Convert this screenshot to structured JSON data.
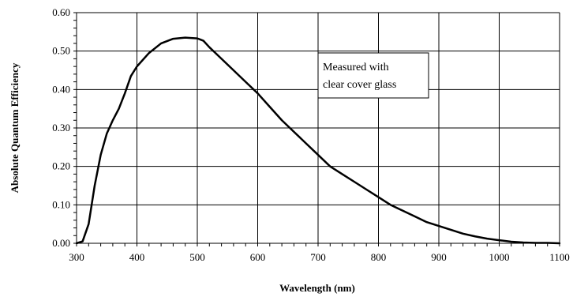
{
  "chart_data": {
    "type": "line",
    "title": "",
    "xlabel": "Wavelength (nm)",
    "ylabel": "Absolute Quantum Efficiency",
    "xlim": [
      300,
      1100
    ],
    "ylim": [
      0,
      0.6
    ],
    "x_ticks": [
      "300",
      "400",
      "500",
      "600",
      "700",
      "800",
      "900",
      "1000",
      "1100"
    ],
    "y_ticks": [
      "0.00",
      "0.10",
      "0.20",
      "0.30",
      "0.40",
      "0.50",
      "0.60"
    ],
    "grid": true,
    "annotation": [
      "Measured with",
      "clear cover glass"
    ],
    "series": [
      {
        "color": "#000000",
        "x": [
          300,
          310,
          320,
          330,
          340,
          350,
          360,
          370,
          380,
          390,
          400,
          420,
          440,
          460,
          480,
          500,
          510,
          520,
          540,
          560,
          580,
          600,
          620,
          640,
          660,
          680,
          700,
          720,
          740,
          760,
          780,
          800,
          820,
          840,
          860,
          880,
          900,
          920,
          940,
          960,
          980,
          1000,
          1020,
          1040,
          1060,
          1080,
          1100
        ],
        "y": [
          0.0,
          0.005,
          0.05,
          0.15,
          0.23,
          0.285,
          0.32,
          0.35,
          0.39,
          0.435,
          0.46,
          0.495,
          0.52,
          0.532,
          0.535,
          0.533,
          0.527,
          0.51,
          0.48,
          0.45,
          0.42,
          0.39,
          0.355,
          0.32,
          0.29,
          0.26,
          0.23,
          0.2,
          0.18,
          0.16,
          0.14,
          0.12,
          0.1,
          0.085,
          0.07,
          0.055,
          0.045,
          0.035,
          0.025,
          0.018,
          0.012,
          0.008,
          0.004,
          0.002,
          0.001,
          0.001,
          0.0
        ]
      }
    ]
  }
}
